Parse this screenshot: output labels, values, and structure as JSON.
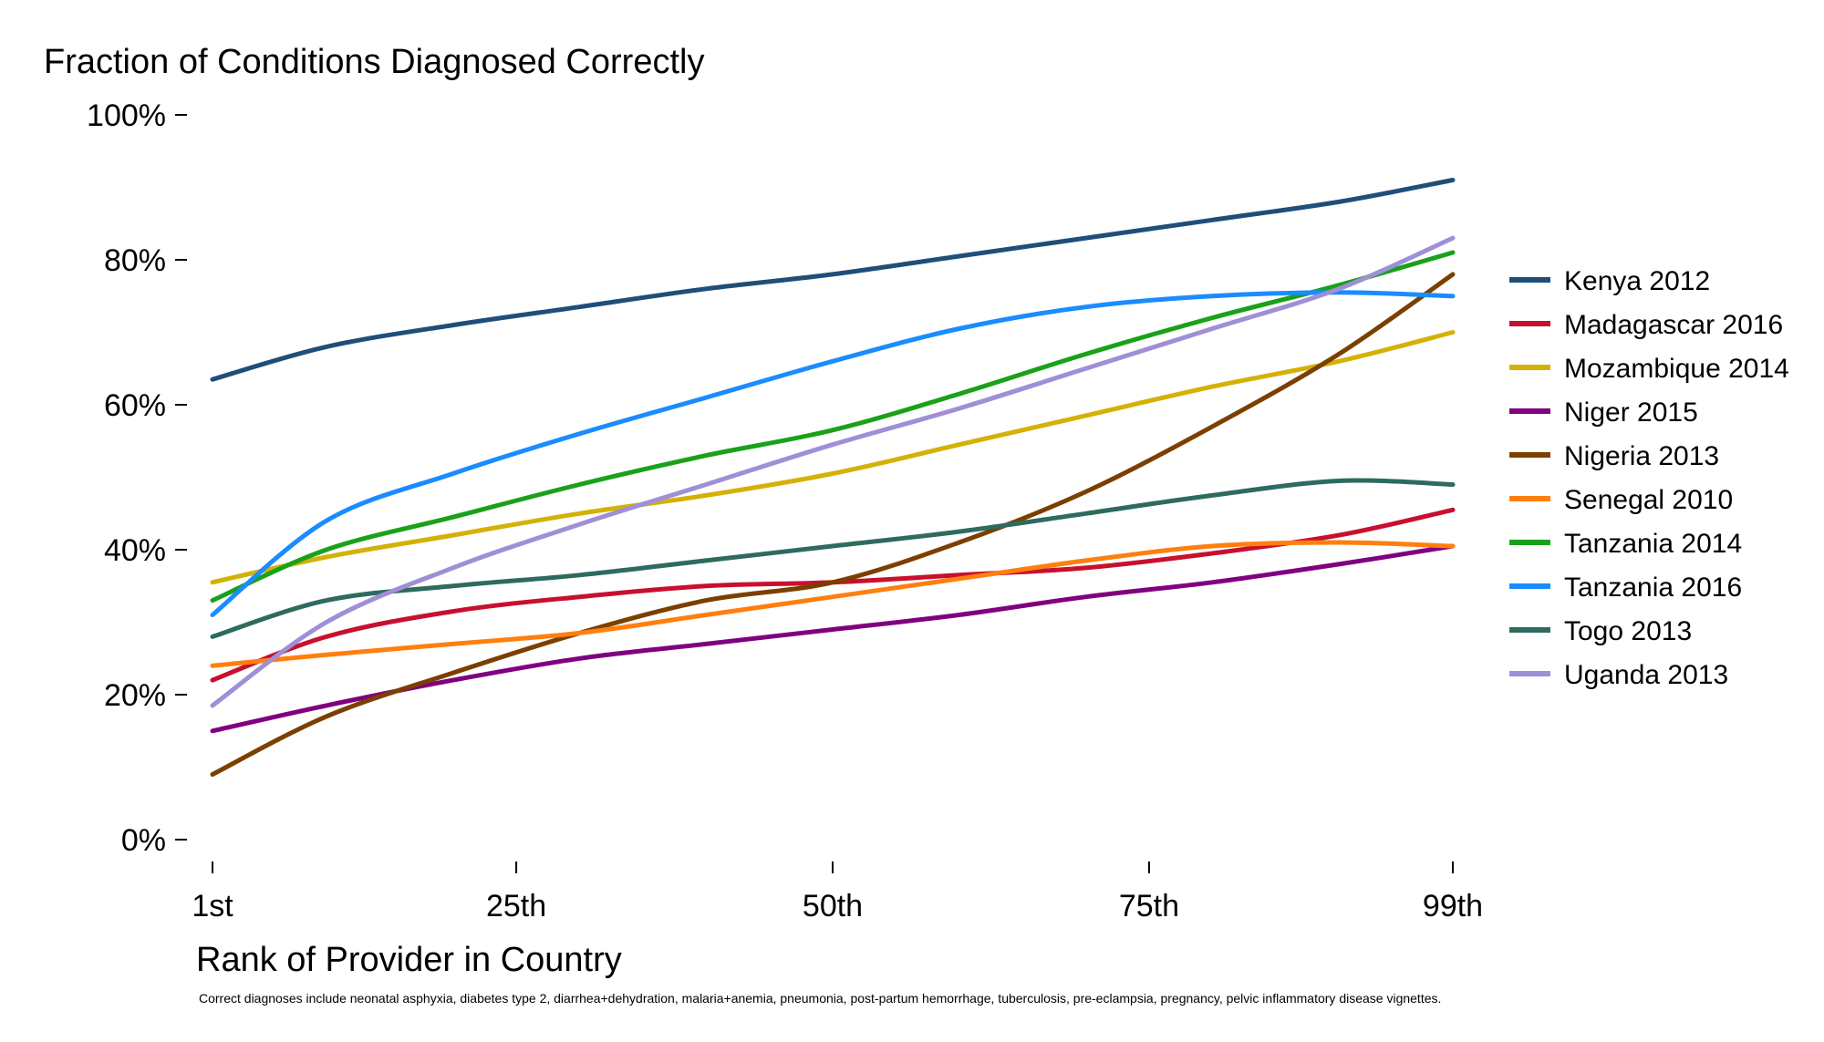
{
  "chart_data": {
    "type": "line",
    "title": "Fraction of Conditions Diagnosed Correctly",
    "xlabel": "Rank of Provider in Country",
    "ylabel": "",
    "note": "Correct diagnoses include neonatal asphyxia, diabetes type 2, diarrhea+dehydration, malaria+anemia, pneumonia, post-partum hemorrhage, tuberculosis, pre-eclampsia, pregnancy, pelvic inflammatory disease vignettes.",
    "xlim": [
      1,
      99
    ],
    "ylim": [
      0,
      100
    ],
    "x_ticks": [
      {
        "value": 1,
        "label": "1st"
      },
      {
        "value": 25,
        "label": "25th"
      },
      {
        "value": 50,
        "label": "50th"
      },
      {
        "value": 75,
        "label": "75th"
      },
      {
        "value": 99,
        "label": "99th"
      }
    ],
    "y_ticks": [
      {
        "value": 0,
        "label": "0%"
      },
      {
        "value": 20,
        "label": "20%"
      },
      {
        "value": 40,
        "label": "40%"
      },
      {
        "value": 60,
        "label": "60%"
      },
      {
        "value": 80,
        "label": "80%"
      },
      {
        "value": 100,
        "label": "100%"
      }
    ],
    "grid": false,
    "legend_position": "right",
    "x": [
      1,
      10,
      20,
      30,
      40,
      50,
      60,
      70,
      80,
      90,
      99
    ],
    "series": [
      {
        "name": "Kenya 2012",
        "color": "#1f4e79",
        "values": [
          63.5,
          68,
          71,
          73.5,
          76,
          78,
          80.5,
          83,
          85.5,
          88,
          91
        ]
      },
      {
        "name": "Madagascar 2016",
        "color": "#c8102e",
        "values": [
          22,
          28,
          31.5,
          33.5,
          35,
          35.5,
          36.5,
          37.5,
          39.5,
          42,
          45.5
        ]
      },
      {
        "name": "Mozambique 2014",
        "color": "#d4b106",
        "values": [
          35.5,
          39,
          42,
          45,
          47.5,
          50.5,
          54.5,
          58.5,
          62.5,
          66,
          70
        ]
      },
      {
        "name": "Niger 2015",
        "color": "#800080",
        "values": [
          15,
          18.5,
          22,
          25,
          27,
          29,
          31,
          33.5,
          35.5,
          38,
          40.5
        ]
      },
      {
        "name": "Nigeria 2013",
        "color": "#7b3f00",
        "values": [
          9,
          17,
          23,
          28.5,
          33,
          35.5,
          41,
          48,
          57,
          67,
          78
        ]
      },
      {
        "name": "Senegal 2010",
        "color": "#ff7f0e",
        "values": [
          24,
          25.5,
          27,
          28.5,
          31,
          33.5,
          36,
          38.5,
          40.5,
          41,
          40.5
        ]
      },
      {
        "name": "Tanzania 2014",
        "color": "#1aa11a",
        "values": [
          33,
          40,
          44.5,
          49,
          53,
          56.5,
          61.5,
          67,
          72,
          76.5,
          81
        ]
      },
      {
        "name": "Tanzania 2016",
        "color": "#1a8cff",
        "values": [
          31,
          44,
          50.5,
          56,
          61,
          66,
          70.5,
          73.5,
          75,
          75.5,
          75
        ]
      },
      {
        "name": "Togo 2013",
        "color": "#2e6b5f",
        "values": [
          28,
          33,
          35,
          36.5,
          38.5,
          40.5,
          42.5,
          45,
          47.5,
          49.5,
          49
        ]
      },
      {
        "name": "Uganda 2013",
        "color": "#9f8fd6",
        "values": [
          18.5,
          30,
          37.5,
          43.5,
          49,
          54.5,
          59.5,
          65,
          70.5,
          76,
          83
        ]
      }
    ]
  }
}
